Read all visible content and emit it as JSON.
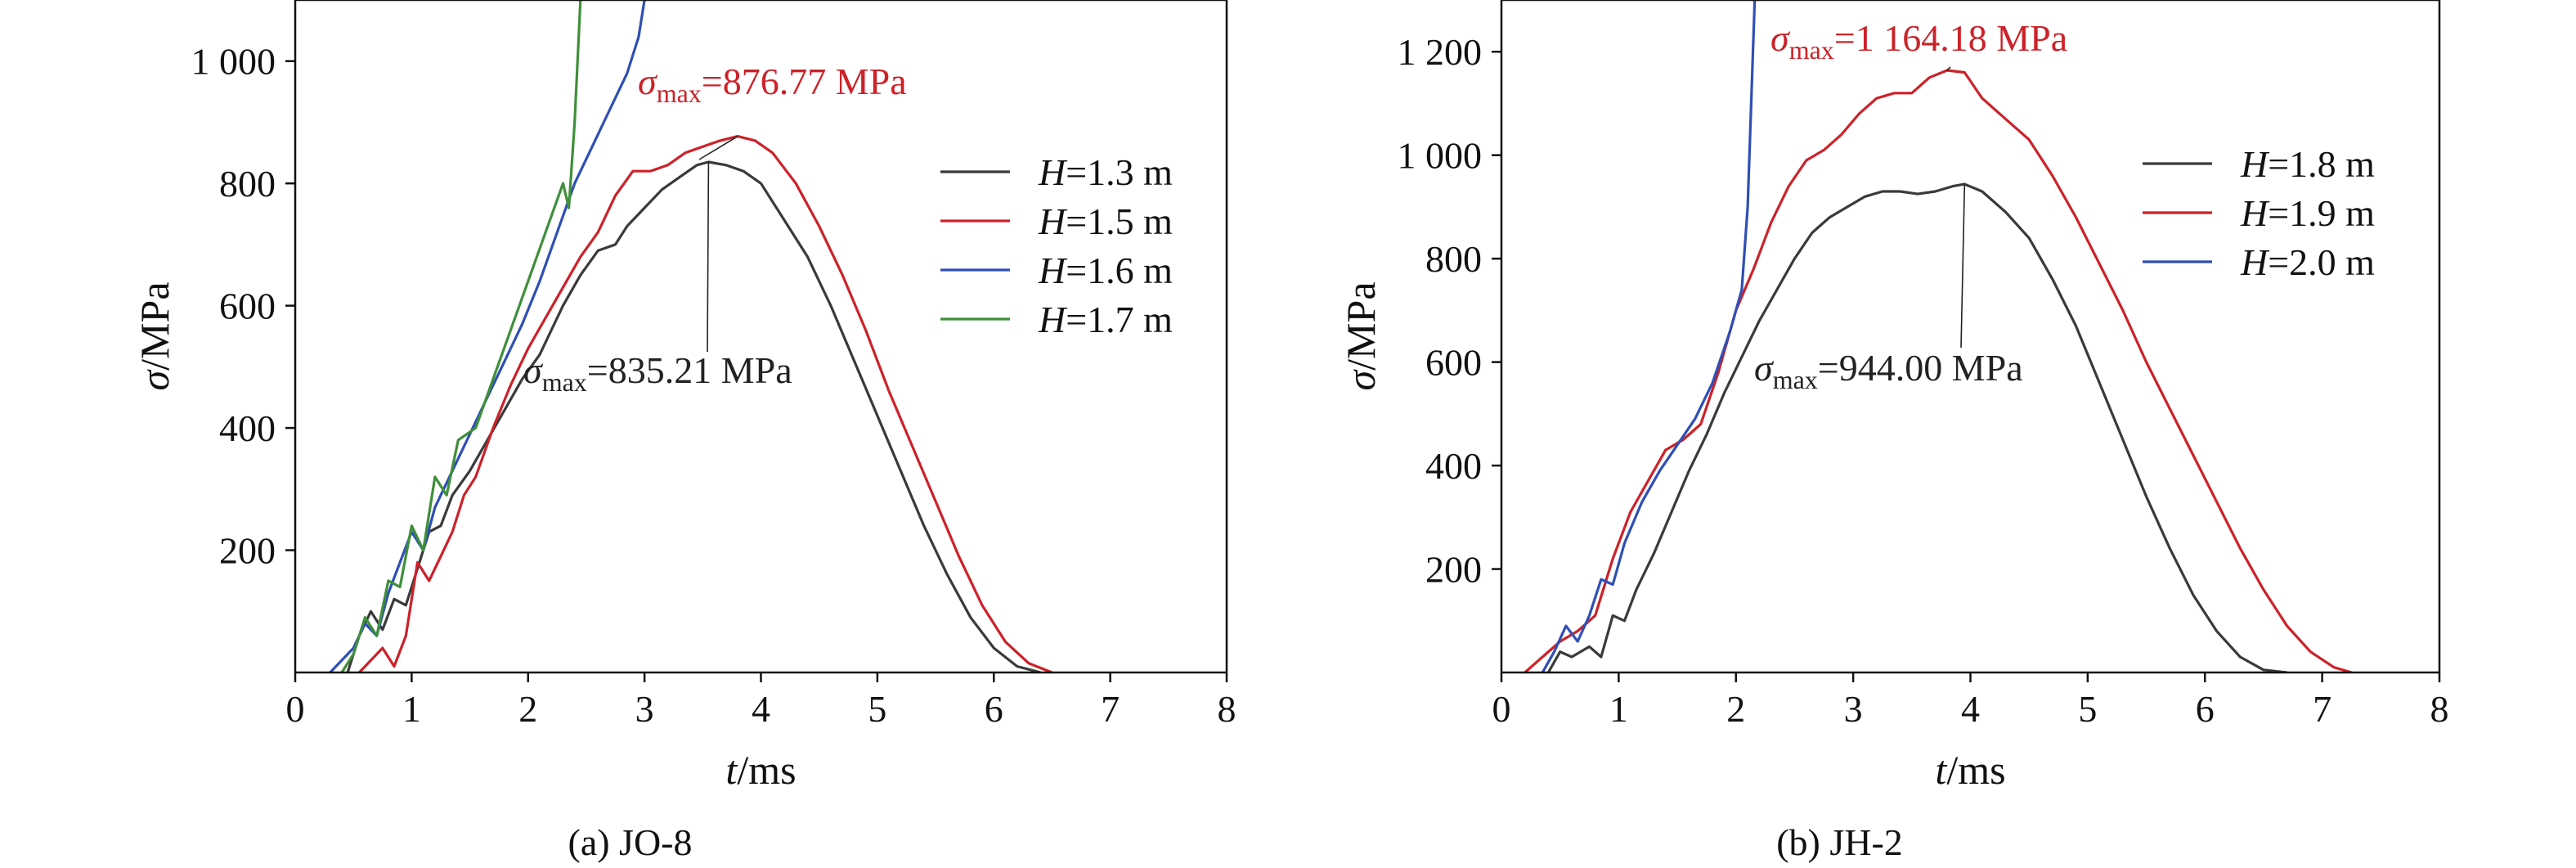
{
  "chart_data": [
    {
      "type": "line",
      "caption": "(a) JO-8",
      "xlabel": "t/ms",
      "ylabel": "σ/MPa",
      "xlim": [
        0,
        8
      ],
      "ylim": [
        0,
        1100
      ],
      "xticks": [
        0,
        1,
        2,
        3,
        4,
        5,
        6,
        7,
        8
      ],
      "xtick_labels": [
        "0",
        "1",
        "2",
        "3",
        "4",
        "5",
        "6",
        "7",
        "8"
      ],
      "yticks": [
        200,
        400,
        600,
        800,
        1000
      ],
      "ytick_labels": [
        "200",
        "400",
        "600",
        "800",
        "1 000"
      ],
      "legend_position": "right",
      "series": [
        {
          "name": "H=1.3 m",
          "legend_var": "H",
          "legend_rest": "=1.3 m",
          "color": "#3a3a3a",
          "points": [
            [
              0.45,
              0
            ],
            [
              0.55,
              60
            ],
            [
              0.65,
              100
            ],
            [
              0.75,
              70
            ],
            [
              0.85,
              120
            ],
            [
              0.95,
              110
            ],
            [
              1.05,
              170
            ],
            [
              1.15,
              230
            ],
            [
              1.25,
              240
            ],
            [
              1.35,
              290
            ],
            [
              1.5,
              330
            ],
            [
              1.65,
              380
            ],
            [
              1.8,
              430
            ],
            [
              1.95,
              480
            ],
            [
              2.1,
              520
            ],
            [
              2.2,
              560
            ],
            [
              2.3,
              600
            ],
            [
              2.45,
              650
            ],
            [
              2.6,
              690
            ],
            [
              2.75,
              700
            ],
            [
              2.85,
              730
            ],
            [
              3.0,
              760
            ],
            [
              3.15,
              790
            ],
            [
              3.3,
              810
            ],
            [
              3.45,
              830
            ],
            [
              3.55,
              835
            ],
            [
              3.7,
              830
            ],
            [
              3.85,
              820
            ],
            [
              4.0,
              800
            ],
            [
              4.2,
              740
            ],
            [
              4.4,
              680
            ],
            [
              4.6,
              600
            ],
            [
              4.8,
              510
            ],
            [
              5.0,
              420
            ],
            [
              5.2,
              330
            ],
            [
              5.4,
              240
            ],
            [
              5.6,
              160
            ],
            [
              5.8,
              90
            ],
            [
              6.0,
              40
            ],
            [
              6.2,
              10
            ],
            [
              6.4,
              0
            ]
          ]
        },
        {
          "name": "H=1.5 m",
          "legend_var": "H",
          "legend_rest": "=1.5 m",
          "color": "#cc2229",
          "points": [
            [
              0.55,
              0
            ],
            [
              0.65,
              20
            ],
            [
              0.75,
              40
            ],
            [
              0.85,
              10
            ],
            [
              0.95,
              60
            ],
            [
              1.05,
              180
            ],
            [
              1.15,
              150
            ],
            [
              1.25,
              190
            ],
            [
              1.35,
              230
            ],
            [
              1.45,
              290
            ],
            [
              1.55,
              320
            ],
            [
              1.7,
              400
            ],
            [
              1.85,
              470
            ],
            [
              2.0,
              530
            ],
            [
              2.15,
              580
            ],
            [
              2.3,
              630
            ],
            [
              2.45,
              680
            ],
            [
              2.6,
              720
            ],
            [
              2.75,
              780
            ],
            [
              2.9,
              820
            ],
            [
              3.05,
              820
            ],
            [
              3.2,
              830
            ],
            [
              3.35,
              850
            ],
            [
              3.5,
              860
            ],
            [
              3.65,
              870
            ],
            [
              3.8,
              877
            ],
            [
              3.95,
              870
            ],
            [
              4.1,
              850
            ],
            [
              4.3,
              800
            ],
            [
              4.5,
              730
            ],
            [
              4.7,
              650
            ],
            [
              4.9,
              560
            ],
            [
              5.1,
              460
            ],
            [
              5.3,
              370
            ],
            [
              5.5,
              280
            ],
            [
              5.7,
              190
            ],
            [
              5.9,
              110
            ],
            [
              6.1,
              50
            ],
            [
              6.3,
              15
            ],
            [
              6.5,
              0
            ]
          ]
        },
        {
          "name": "H=1.6 m",
          "legend_var": "H",
          "legend_rest": "=1.6 m",
          "color": "#2f4fb5",
          "points": [
            [
              0.3,
              0
            ],
            [
              0.4,
              20
            ],
            [
              0.5,
              40
            ],
            [
              0.6,
              80
            ],
            [
              0.7,
              60
            ],
            [
              0.8,
              130
            ],
            [
              0.9,
              180
            ],
            [
              1.0,
              230
            ],
            [
              1.1,
              200
            ],
            [
              1.2,
              270
            ],
            [
              1.35,
              330
            ],
            [
              1.5,
              390
            ],
            [
              1.65,
              450
            ],
            [
              1.8,
              510
            ],
            [
              1.95,
              570
            ],
            [
              2.1,
              640
            ],
            [
              2.25,
              720
            ],
            [
              2.4,
              800
            ],
            [
              2.55,
              860
            ],
            [
              2.7,
              920
            ],
            [
              2.85,
              980
            ],
            [
              2.95,
              1040
            ],
            [
              3.0,
              1100
            ]
          ]
        },
        {
          "name": "H=1.7 m",
          "legend_var": "H",
          "legend_rest": "=1.7 m",
          "color": "#3f8f3a",
          "points": [
            [
              0.4,
              0
            ],
            [
              0.5,
              30
            ],
            [
              0.6,
              90
            ],
            [
              0.7,
              60
            ],
            [
              0.8,
              150
            ],
            [
              0.9,
              140
            ],
            [
              1.0,
              240
            ],
            [
              1.1,
              200
            ],
            [
              1.2,
              320
            ],
            [
              1.3,
              290
            ],
            [
              1.4,
              380
            ],
            [
              1.55,
              400
            ],
            [
              1.7,
              480
            ],
            [
              1.85,
              560
            ],
            [
              2.0,
              640
            ],
            [
              2.15,
              720
            ],
            [
              2.3,
              800
            ],
            [
              2.35,
              760
            ],
            [
              2.4,
              900
            ],
            [
              2.45,
              1100
            ]
          ]
        }
      ],
      "annotations": [
        {
          "sym": "σ",
          "sub": "max",
          "rest": "=876.77 MPa",
          "color": "#cc2229",
          "x": 3.8,
          "y": 877
        },
        {
          "sym": "σ",
          "sub": "max",
          "rest": "=835.21 MPa",
          "color": "#222222",
          "x": 3.55,
          "y": 835
        }
      ]
    },
    {
      "type": "line",
      "caption": "(b) JH-2",
      "xlabel": "t/ms",
      "ylabel": "σ/MPa",
      "xlim": [
        0,
        8
      ],
      "ylim": [
        0,
        1300
      ],
      "xticks": [
        0,
        1,
        2,
        3,
        4,
        5,
        6,
        7,
        8
      ],
      "xtick_labels": [
        "0",
        "1",
        "2",
        "3",
        "4",
        "5",
        "6",
        "7",
        "8"
      ],
      "yticks": [
        200,
        400,
        600,
        800,
        1000,
        1200
      ],
      "ytick_labels": [
        "200",
        "400",
        "600",
        "800",
        "1 000",
        "1 200"
      ],
      "legend_position": "right",
      "series": [
        {
          "name": "H=1.8 m",
          "legend_var": "H",
          "legend_rest": "=1.8 m",
          "color": "#3a3a3a",
          "points": [
            [
              0.4,
              0
            ],
            [
              0.5,
              40
            ],
            [
              0.6,
              30
            ],
            [
              0.75,
              50
            ],
            [
              0.85,
              30
            ],
            [
              0.95,
              110
            ],
            [
              1.05,
              100
            ],
            [
              1.15,
              160
            ],
            [
              1.3,
              230
            ],
            [
              1.45,
              310
            ],
            [
              1.6,
              390
            ],
            [
              1.75,
              460
            ],
            [
              1.9,
              540
            ],
            [
              2.05,
              610
            ],
            [
              2.2,
              680
            ],
            [
              2.35,
              740
            ],
            [
              2.5,
              800
            ],
            [
              2.65,
              850
            ],
            [
              2.8,
              880
            ],
            [
              2.95,
              900
            ],
            [
              3.1,
              920
            ],
            [
              3.25,
              930
            ],
            [
              3.4,
              930
            ],
            [
              3.55,
              925
            ],
            [
              3.7,
              930
            ],
            [
              3.85,
              940
            ],
            [
              3.95,
              944
            ],
            [
              4.1,
              930
            ],
            [
              4.3,
              890
            ],
            [
              4.5,
              840
            ],
            [
              4.7,
              760
            ],
            [
              4.9,
              670
            ],
            [
              5.1,
              560
            ],
            [
              5.3,
              450
            ],
            [
              5.5,
              340
            ],
            [
              5.7,
              240
            ],
            [
              5.9,
              150
            ],
            [
              6.1,
              80
            ],
            [
              6.3,
              30
            ],
            [
              6.5,
              5
            ],
            [
              6.7,
              0
            ]
          ]
        },
        {
          "name": "H=1.9 m",
          "legend_var": "H",
          "legend_rest": "=1.9 m",
          "color": "#cc2229",
          "points": [
            [
              0.2,
              0
            ],
            [
              0.35,
              30
            ],
            [
              0.5,
              60
            ],
            [
              0.65,
              80
            ],
            [
              0.8,
              110
            ],
            [
              0.95,
              220
            ],
            [
              1.1,
              310
            ],
            [
              1.25,
              370
            ],
            [
              1.4,
              430
            ],
            [
              1.55,
              450
            ],
            [
              1.7,
              480
            ],
            [
              1.85,
              580
            ],
            [
              2.0,
              700
            ],
            [
              2.15,
              780
            ],
            [
              2.3,
              870
            ],
            [
              2.45,
              940
            ],
            [
              2.6,
              990
            ],
            [
              2.75,
              1010
            ],
            [
              2.9,
              1040
            ],
            [
              3.05,
              1080
            ],
            [
              3.2,
              1110
            ],
            [
              3.35,
              1120
            ],
            [
              3.5,
              1120
            ],
            [
              3.65,
              1150
            ],
            [
              3.8,
              1164
            ],
            [
              3.95,
              1160
            ],
            [
              4.1,
              1110
            ],
            [
              4.3,
              1070
            ],
            [
              4.5,
              1030
            ],
            [
              4.7,
              960
            ],
            [
              4.9,
              880
            ],
            [
              5.1,
              790
            ],
            [
              5.3,
              700
            ],
            [
              5.5,
              600
            ],
            [
              5.7,
              510
            ],
            [
              5.9,
              420
            ],
            [
              6.1,
              330
            ],
            [
              6.3,
              240
            ],
            [
              6.5,
              160
            ],
            [
              6.7,
              90
            ],
            [
              6.9,
              40
            ],
            [
              7.1,
              10
            ],
            [
              7.25,
              0
            ]
          ]
        },
        {
          "name": "H=2.0 m",
          "legend_var": "H",
          "legend_rest": "=2.0 m",
          "color": "#2f4fb5",
          "points": [
            [
              0.35,
              0
            ],
            [
              0.45,
              40
            ],
            [
              0.55,
              90
            ],
            [
              0.65,
              60
            ],
            [
              0.75,
              110
            ],
            [
              0.85,
              180
            ],
            [
              0.95,
              170
            ],
            [
              1.05,
              250
            ],
            [
              1.2,
              330
            ],
            [
              1.35,
              390
            ],
            [
              1.5,
              440
            ],
            [
              1.65,
              490
            ],
            [
              1.8,
              560
            ],
            [
              1.95,
              660
            ],
            [
              2.05,
              740
            ],
            [
              2.1,
              900
            ],
            [
              2.13,
              1100
            ],
            [
              2.16,
              1300
            ]
          ]
        }
      ],
      "annotations": [
        {
          "sym": "σ",
          "sub": "max",
          "rest": "=1 164.18 MPa",
          "color": "#cc2229",
          "x": 3.8,
          "y": 1164
        },
        {
          "sym": "σ",
          "sub": "max",
          "rest": "=944.00 MPa",
          "color": "#222222",
          "x": 3.95,
          "y": 944
        }
      ]
    }
  ]
}
